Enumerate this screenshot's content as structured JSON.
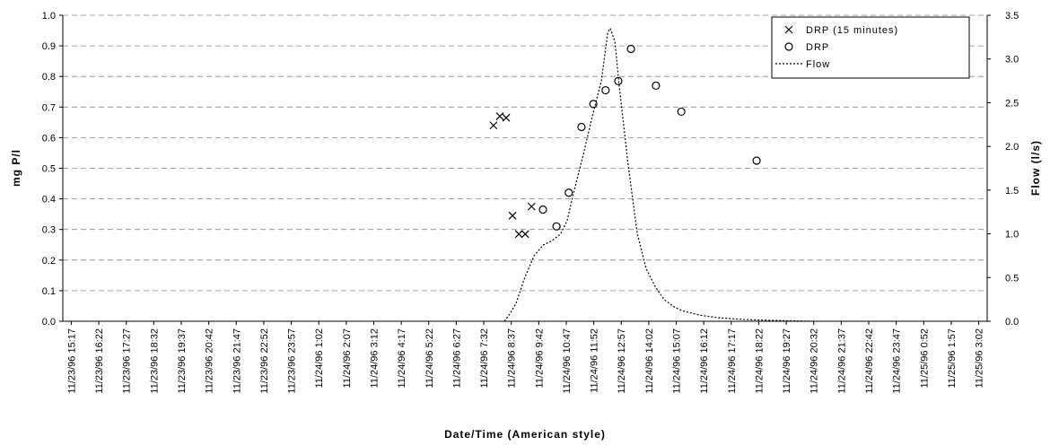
{
  "chart_data": {
    "type": "scatter",
    "x_label": "Date/Time (American style)",
    "y_label": "mg P/l",
    "y2_label": "Flow (l/s)",
    "xlim": [
      -20,
      2165
    ],
    "xticks": [
      {
        "value": 0,
        "label": "11/23/96 15:17"
      },
      {
        "value": 65,
        "label": "11/23/96 16:22"
      },
      {
        "value": 130,
        "label": "11/23/96 17:27"
      },
      {
        "value": 195,
        "label": "11/23/96 18:32"
      },
      {
        "value": 260,
        "label": "11/23/96 19:37"
      },
      {
        "value": 325,
        "label": "11/23/96 20:42"
      },
      {
        "value": 390,
        "label": "11/23/96 21:47"
      },
      {
        "value": 455,
        "label": "11/23/96 22:52"
      },
      {
        "value": 520,
        "label": "11/23/96 23:57"
      },
      {
        "value": 585,
        "label": "11/24/96 1:02"
      },
      {
        "value": 650,
        "label": "11/24/96 2:07"
      },
      {
        "value": 715,
        "label": "11/24/96 3:12"
      },
      {
        "value": 780,
        "label": "11/24/96 4:17"
      },
      {
        "value": 845,
        "label": "11/24/96 5:22"
      },
      {
        "value": 910,
        "label": "11/24/96 6:27"
      },
      {
        "value": 975,
        "label": "11/24/96 7:32"
      },
      {
        "value": 1040,
        "label": "11/24/96 8:37"
      },
      {
        "value": 1105,
        "label": "11/24/96 9:42"
      },
      {
        "value": 1170,
        "label": "11/24/96 10:47"
      },
      {
        "value": 1235,
        "label": "11/24/96 11:52"
      },
      {
        "value": 1300,
        "label": "11/24/96 12:57"
      },
      {
        "value": 1365,
        "label": "11/24/96 14:02"
      },
      {
        "value": 1430,
        "label": "11/24/96 15:07"
      },
      {
        "value": 1495,
        "label": "11/24/96 16:12"
      },
      {
        "value": 1560,
        "label": "11/24/96 17:17"
      },
      {
        "value": 1625,
        "label": "11/24/96 18:22"
      },
      {
        "value": 1690,
        "label": "11/24/96 19:27"
      },
      {
        "value": 1755,
        "label": "11/24/96 20:32"
      },
      {
        "value": 1820,
        "label": "11/24/96 21:37"
      },
      {
        "value": 1885,
        "label": "11/24/96 22:42"
      },
      {
        "value": 1950,
        "label": "11/24/96 23:47"
      },
      {
        "value": 2015,
        "label": "11/25/96 0:52"
      },
      {
        "value": 2080,
        "label": "11/25/96 1:57"
      },
      {
        "value": 2145,
        "label": "11/25/96 3:02"
      }
    ],
    "ylim": [
      0,
      1
    ],
    "yticks": [
      {
        "value": 0,
        "label": "0.0"
      },
      0.1,
      0.2,
      0.3,
      0.4,
      0.5,
      0.6,
      0.7,
      0.8,
      0.9,
      {
        "value": 1,
        "label": "1.0"
      }
    ],
    "y2lim": [
      0,
      3.5
    ],
    "y2ticks": [
      {
        "value": 0,
        "label": "0.0"
      },
      0.5,
      {
        "value": 1,
        "label": "1.0"
      },
      1.5,
      {
        "value": 2,
        "label": "2.0"
      },
      2.5,
      {
        "value": 3,
        "label": "3.0"
      },
      3.5
    ],
    "grid": true,
    "legend": "top-right",
    "series": [
      {
        "name": "DRP (15 minutes)",
        "marker": "x",
        "color": "#000000",
        "x": [
          998,
          1013,
          1028,
          1043,
          1058,
          1073,
          1088
        ],
        "values": [
          0.64,
          0.67,
          0.665,
          0.345,
          0.285,
          0.285,
          0.375
        ]
      },
      {
        "name": "DRP",
        "marker": "circle",
        "color": "#000000",
        "x": [
          1115,
          1147,
          1176,
          1206,
          1234,
          1263,
          1293,
          1323,
          1382,
          1442,
          1620
        ],
        "values": [
          0.365,
          0.31,
          0.42,
          0.635,
          0.71,
          0.755,
          0.785,
          0.89,
          0.77,
          0.685,
          0.525
        ]
      },
      {
        "name": "Flow",
        "marker": "dotted-line",
        "color": "#000000",
        "axis": "y2",
        "x": [
          1024,
          1036,
          1051,
          1072,
          1094,
          1115,
          1136,
          1157,
          1172,
          1189,
          1210,
          1232,
          1253,
          1268,
          1274,
          1285,
          1295,
          1316,
          1338,
          1359,
          1380,
          1401,
          1423,
          1444,
          1486,
          1529,
          1592,
          1656,
          1751
        ],
        "values": [
          0,
          0.08,
          0.2,
          0.5,
          0.75,
          0.87,
          0.92,
          1.0,
          1.15,
          1.5,
          1.9,
          2.35,
          2.75,
          3.3,
          3.35,
          3.2,
          2.7,
          1.8,
          1.0,
          0.6,
          0.4,
          0.25,
          0.17,
          0.12,
          0.07,
          0.04,
          0.02,
          0.01,
          0
        ]
      }
    ]
  }
}
